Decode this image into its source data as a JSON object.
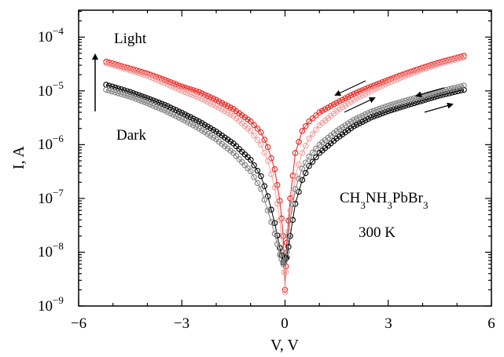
{
  "chart_data": {
    "type": "scatter",
    "xlabel": "V, V",
    "ylabel": "I, A",
    "xlim": [
      -6,
      6
    ],
    "ylim_log10": [
      -9,
      -3.5
    ],
    "y_scale": "log",
    "grid": false,
    "x_ticks": [
      "−6",
      "−3",
      "0",
      "3",
      "6"
    ],
    "y_tick_exponents": [
      "−9",
      "−8",
      "−7",
      "−6",
      "−5",
      "−4"
    ],
    "annotations": {
      "light_label": "Light",
      "dark_label": "Dark",
      "material": "CH3NH3PbBr3",
      "temperature": "300 K"
    },
    "series": [
      {
        "color": "#e8221d",
        "marker": "open-circle",
        "points": [
          [
            -5.2,
            3.5e-05
          ],
          [
            -4.5,
            2.6e-05
          ],
          [
            -4.0,
            2.1e-05
          ],
          [
            -3.5,
            1.6e-05
          ],
          [
            -3.0,
            1.2e-05
          ],
          [
            -2.5,
            9.5e-06
          ],
          [
            -2.0,
            6.8e-06
          ],
          [
            -1.5,
            4.6e-06
          ],
          [
            -1.0,
            2.7e-06
          ],
          [
            -0.7,
            1.7e-06
          ],
          [
            -0.5,
            9e-07
          ],
          [
            -0.3,
            3.5e-07
          ],
          [
            -0.15,
            9e-08
          ],
          [
            -0.05,
            2e-08
          ],
          [
            0.0,
            2e-09
          ],
          [
            0.05,
            1.5e-08
          ],
          [
            0.15,
            1e-07
          ],
          [
            0.3,
            7e-07
          ],
          [
            0.5,
            1.8e-06
          ],
          [
            0.7,
            2.7e-06
          ],
          [
            1.0,
            4e-06
          ],
          [
            1.5,
            6e-06
          ],
          [
            2.0,
            8.8e-06
          ],
          [
            2.5,
            1.2e-05
          ],
          [
            3.0,
            1.6e-05
          ],
          [
            3.5,
            2.1e-05
          ],
          [
            4.0,
            2.7e-05
          ],
          [
            4.5,
            3.4e-05
          ],
          [
            5.2,
            4.5e-05
          ]
        ]
      },
      {
        "color": "#f0a0a0",
        "marker": "open-circle",
        "points": [
          [
            -5.2,
            3.3e-05
          ],
          [
            -4.5,
            2.4e-05
          ],
          [
            -4.0,
            1.9e-05
          ],
          [
            -3.5,
            1.4e-05
          ],
          [
            -3.0,
            1e-05
          ],
          [
            -2.5,
            7.5e-06
          ],
          [
            -2.0,
            5.2e-06
          ],
          [
            -1.5,
            3.4e-06
          ],
          [
            -1.0,
            1.8e-06
          ],
          [
            -0.7,
            1e-06
          ],
          [
            -0.5,
            5e-07
          ],
          [
            -0.3,
            1.6e-07
          ],
          [
            -0.15,
            4e-08
          ],
          [
            -0.05,
            1e-08
          ],
          [
            0.0,
            1.8e-09
          ],
          [
            0.05,
            1e-08
          ],
          [
            0.15,
            6e-08
          ],
          [
            0.3,
            2.6e-07
          ],
          [
            0.5,
            7e-07
          ],
          [
            0.7,
            1.3e-06
          ],
          [
            1.0,
            2.3e-06
          ],
          [
            1.5,
            4.2e-06
          ],
          [
            2.0,
            6.8e-06
          ],
          [
            2.5,
            1e-05
          ],
          [
            3.0,
            1.4e-05
          ],
          [
            3.5,
            1.9e-05
          ],
          [
            4.0,
            2.5e-05
          ],
          [
            4.5,
            3.2e-05
          ],
          [
            5.2,
            4.2e-05
          ]
        ]
      },
      {
        "color": "#000000",
        "marker": "open-circle",
        "points": [
          [
            -5.2,
            1.3e-05
          ],
          [
            -4.5,
            9.5e-06
          ],
          [
            -4.0,
            7.3e-06
          ],
          [
            -3.5,
            5.5e-06
          ],
          [
            -3.0,
            3.9e-06
          ],
          [
            -2.5,
            2.7e-06
          ],
          [
            -2.0,
            1.75e-06
          ],
          [
            -1.5,
            1.05e-06
          ],
          [
            -1.0,
            5.2e-07
          ],
          [
            -0.7,
            2.6e-07
          ],
          [
            -0.5,
            1.1e-07
          ],
          [
            -0.3,
            3.5e-08
          ],
          [
            -0.15,
            1.2e-08
          ],
          [
            -0.05,
            6.5e-09
          ],
          [
            0.0,
            8e-09
          ],
          [
            0.05,
            8e-09
          ],
          [
            0.15,
            2e-08
          ],
          [
            0.3,
            8e-08
          ],
          [
            0.5,
            2.2e-07
          ],
          [
            0.7,
            4e-07
          ],
          [
            1.0,
            7e-07
          ],
          [
            1.5,
            1.3e-06
          ],
          [
            2.0,
            2.2e-06
          ],
          [
            2.5,
            3.2e-06
          ],
          [
            3.0,
            4.2e-06
          ],
          [
            3.5,
            5.3e-06
          ],
          [
            4.0,
            6.6e-06
          ],
          [
            4.5,
            8.2e-06
          ],
          [
            5.2,
            1.05e-05
          ]
        ]
      },
      {
        "color": "#808080",
        "marker": "open-circle",
        "points": [
          [
            -5.2,
            1.05e-05
          ],
          [
            -4.5,
            7.8e-06
          ],
          [
            -4.0,
            5.9e-06
          ],
          [
            -3.5,
            4.3e-06
          ],
          [
            -3.0,
            3e-06
          ],
          [
            -2.5,
            2e-06
          ],
          [
            -2.0,
            1.25e-06
          ],
          [
            -1.5,
            7e-07
          ],
          [
            -1.0,
            3.2e-07
          ],
          [
            -0.7,
            1.5e-07
          ],
          [
            -0.5,
            6e-08
          ],
          [
            -0.3,
            2.2e-08
          ],
          [
            -0.15,
            9e-09
          ],
          [
            -0.05,
            6e-09
          ],
          [
            0.0,
            7e-09
          ],
          [
            0.05,
            1e-08
          ],
          [
            0.15,
            4e-08
          ],
          [
            0.3,
            1.5e-07
          ],
          [
            0.5,
            3.6e-07
          ],
          [
            0.7,
            6e-07
          ],
          [
            1.0,
            1e-06
          ],
          [
            1.5,
            1.8e-06
          ],
          [
            2.0,
            2.9e-06
          ],
          [
            2.5,
            4.1e-06
          ],
          [
            3.0,
            5.3e-06
          ],
          [
            3.5,
            6.6e-06
          ],
          [
            4.0,
            8e-06
          ],
          [
            4.5,
            9.8e-06
          ],
          [
            5.2,
            1.25e-05
          ]
        ]
      }
    ]
  }
}
